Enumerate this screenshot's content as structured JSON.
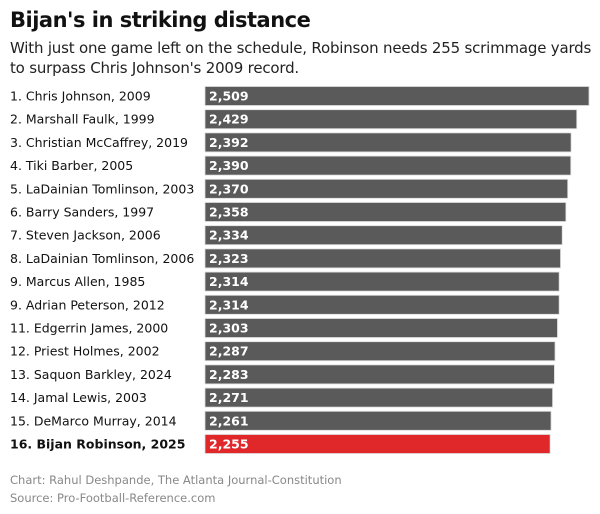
{
  "chart_data": {
    "type": "bar",
    "orientation": "horizontal",
    "title": "Bijan's in striking distance",
    "subtitle": "With just one game left on the schedule, Robinson needs 255 scrimmage yards to surpass Chris Johnson's 2009 record.",
    "categories": [
      "1. Chris Johnson, 2009",
      "2. Marshall Faulk, 1999",
      "3. Christian McCaffrey, 2019",
      "4. Tiki Barber, 2005",
      "5. LaDainian Tomlinson, 2003",
      "6. Barry Sanders, 1997",
      "7. Steven Jackson, 2006",
      "8. LaDainian Tomlinson, 2006",
      "9. Marcus Allen, 1985",
      "9. Adrian Peterson, 2012",
      "11. Edgerrin James, 2000",
      "12. Priest Holmes, 2002",
      "13. Saquon Barkley, 2024",
      "14. Jamal Lewis, 2003",
      "15. DeMarco Murray, 2014",
      "16. Bijan Robinson, 2025"
    ],
    "values": [
      2509,
      2429,
      2392,
      2390,
      2370,
      2358,
      2334,
      2323,
      2314,
      2314,
      2303,
      2287,
      2283,
      2271,
      2261,
      2255
    ],
    "value_labels": [
      "2,509",
      "2,429",
      "2,392",
      "2,390",
      "2,370",
      "2,358",
      "2,334",
      "2,323",
      "2,314",
      "2,314",
      "2,303",
      "2,287",
      "2,283",
      "2,271",
      "2,261",
      "2,255"
    ],
    "highlight_index": 15,
    "xlim": [
      0,
      2509
    ],
    "grid": false,
    "colors": {
      "bar": "#5a5a5a",
      "highlight": "#e0282b"
    }
  },
  "footer": {
    "credit": "Chart: Rahul Deshpande, The Atlanta Journal-Constitution",
    "source": "Source: Pro-Football-Reference.com"
  }
}
